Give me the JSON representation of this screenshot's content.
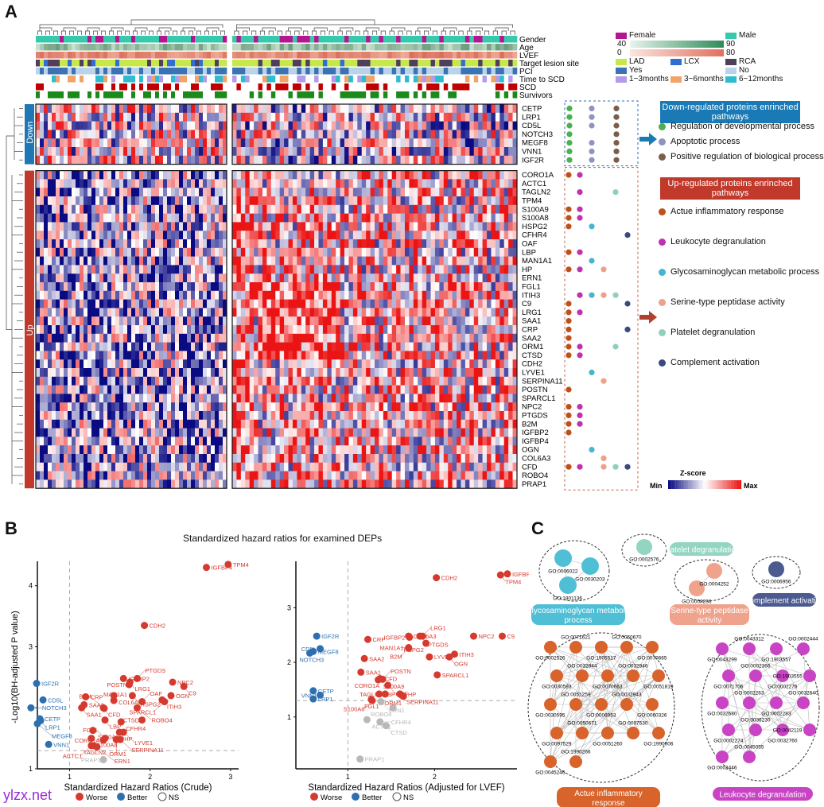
{
  "panelA": {
    "letter": "A",
    "annotation_rows": [
      "Gender",
      "Age",
      "LVEF",
      "Target lesion site",
      "PCI",
      "Time to SCD",
      "SCD",
      "Survivors"
    ],
    "legend": {
      "gender": [
        {
          "label": "Female",
          "color": "#b5168f"
        },
        {
          "label": "Male",
          "color": "#37c9ad"
        }
      ],
      "age": {
        "min": "40",
        "max": "90",
        "from": "#e8f4ee",
        "to": "#2e8b57"
      },
      "lvef": {
        "min": "0",
        "max": "80",
        "from": "#fbe6df",
        "to": "#e0705c"
      },
      "lesion": [
        {
          "label": "LAD",
          "color": "#c6e84a"
        },
        {
          "label": "LCX",
          "color": "#2f6fd1"
        },
        {
          "label": "RCA",
          "color": "#4f3f5b"
        }
      ],
      "pci": [
        {
          "label": "Yes",
          "color": "#3a72b4"
        },
        {
          "label": "No",
          "color": "#b9d3ea"
        }
      ],
      "time": [
        {
          "label": "1~3months",
          "color": "#b49be8"
        },
        {
          "label": "3~6months",
          "color": "#f1a46a"
        },
        {
          "label": "6~12months",
          "color": "#2ebdd0"
        }
      ]
    },
    "groups": {
      "down": "Down",
      "up": "Up",
      "down_color": "#1f78b4",
      "up_color": "#c0392b"
    },
    "down_genes": [
      "CETP",
      "LRP1",
      "CD5L",
      "NOTCH3",
      "MEGF8",
      "VNN1",
      "IGF2R"
    ],
    "up_genes": [
      "CORO1A",
      "ACTC1",
      "TAGLN2",
      "TPM4",
      "S100A9",
      "S100A8",
      "HSPG2",
      "CFHR4",
      "OAF",
      "LBP",
      "MAN1A1",
      "HP",
      "ERN1",
      "FGL1",
      "ITIH3",
      "C9",
      "LRG1",
      "SAA1",
      "CRP",
      "SAA2",
      "ORM1",
      "CTSD",
      "CDH2",
      "LYVE1",
      "SERPINA11",
      "POSTN",
      "SPARCL1",
      "NPC2",
      "PTGDS",
      "B2M",
      "IGFBP2",
      "IGFBP4",
      "OGN",
      "COL6A3",
      "CFD",
      "ROBO4",
      "PRAP1"
    ],
    "down_pathways": {
      "title": "Down-regulated proteins enrinched pathways",
      "color": "#1a7ab5",
      "items": [
        {
          "label": "Regulation of developmental process",
          "color": "#4caf50"
        },
        {
          "label": "Apoptotic process",
          "color": "#8f93c2"
        },
        {
          "label": "Positive regulation of biological process",
          "color": "#7b5e4a"
        }
      ],
      "membership": {
        "CETP": [
          0,
          1,
          2
        ],
        "LRP1": [
          0,
          1,
          2
        ],
        "CD5L": [
          0,
          1,
          2
        ],
        "NOTCH3": [
          0,
          2
        ],
        "MEGF8": [
          0,
          1,
          2
        ],
        "VNN1": [
          0,
          1,
          2
        ],
        "IGF2R": [
          0,
          1,
          2
        ]
      }
    },
    "up_pathways": {
      "title": "Up-regulated proteins enrinched pathways",
      "color": "#c0392b",
      "items": [
        {
          "label": "Actue inflammatory response",
          "color": "#c0501a"
        },
        {
          "label": "Leukocyte degranulation",
          "color": "#c030b0"
        },
        {
          "label": "Glycosaminoglycan metabolic process",
          "color": "#45b5d0"
        },
        {
          "label": "Serine-type peptidase activity",
          "color": "#eea08a"
        },
        {
          "label": "Platelet degranulation",
          "color": "#8fd0bb"
        },
        {
          "label": "Complement activation",
          "color": "#3a4a80"
        }
      ],
      "membership": {
        "CORO1A": [
          0,
          1
        ],
        "TAGLN2": [
          1,
          4
        ],
        "S100A9": [
          0,
          1
        ],
        "S100A8": [
          0,
          1
        ],
        "HSPG2": [
          0,
          2
        ],
        "CFHR4": [
          5
        ],
        "LBP": [
          0,
          1
        ],
        "MAN1A1": [
          2
        ],
        "HP": [
          0,
          1,
          3
        ],
        "ITIH3": [
          1,
          2,
          3,
          4
        ],
        "C9": [
          0,
          5
        ],
        "LRG1": [
          0,
          1
        ],
        "SAA1": [
          0
        ],
        "CRP": [
          0,
          5
        ],
        "SAA2": [
          0
        ],
        "ORM1": [
          0,
          1,
          4
        ],
        "CTSD": [
          0,
          1
        ],
        "LYVE1": [
          2
        ],
        "SERPINA11": [
          3
        ],
        "POSTN": [
          0
        ],
        "NPC2": [
          0,
          1
        ],
        "PTGDS": [
          0,
          1
        ],
        "B2M": [
          0,
          1
        ],
        "IGFBP2": [
          0
        ],
        "OGN": [
          2
        ],
        "COL6A3": [
          3
        ],
        "CFD": [
          0,
          1,
          3,
          4,
          5
        ]
      }
    },
    "zscore": {
      "title": "Z-score",
      "min": "Min",
      "max": "Max"
    }
  },
  "panelB": {
    "letter": "B",
    "title": "Standardized hazard ratios for examined DEPs",
    "ylabel": "-Log10(BH-adjusted P value)",
    "legend": [
      {
        "label": "Worse",
        "color": "#d63a2f"
      },
      {
        "label": "Better",
        "color": "#2e6fb0"
      },
      {
        "label": "NS",
        "color": "#ffffff"
      }
    ]
  },
  "chart_data": [
    {
      "type": "scatter",
      "title": "Standardized hazard ratios for examined DEPs",
      "xlabel": "Standardized Hazard Ratios (Crude)",
      "ylabel": "-Log10(BH-adjusted P value)",
      "xlim": [
        0.6,
        3.1
      ],
      "ylim": [
        1,
        4.4
      ],
      "xticks": [
        1,
        2,
        3
      ],
      "yticks": [
        1,
        2,
        3,
        4
      ],
      "vline": 1,
      "hline": 1.3,
      "points": [
        {
          "g": "TPM4",
          "x": 2.97,
          "y": 4.35,
          "c": "worse"
        },
        {
          "g": "IGFBP4",
          "x": 2.7,
          "y": 4.3,
          "c": "worse"
        },
        {
          "g": "CDH2",
          "x": 1.93,
          "y": 3.35,
          "c": "worse"
        },
        {
          "g": "IGFBP2",
          "x": 1.67,
          "y": 2.48,
          "c": "worse"
        },
        {
          "g": "PTGDS",
          "x": 1.84,
          "y": 2.48,
          "c": "worse"
        },
        {
          "g": "LRG1",
          "x": 1.75,
          "y": 2.42,
          "c": "worse"
        },
        {
          "g": "POSTN",
          "x": 1.74,
          "y": 2.38,
          "c": "worse"
        },
        {
          "g": "NPC2",
          "x": 2.28,
          "y": 2.42,
          "c": "worse"
        },
        {
          "g": "C9",
          "x": 2.42,
          "y": 2.35,
          "c": "worse"
        },
        {
          "g": "OGN",
          "x": 2.26,
          "y": 2.2,
          "c": "worse"
        },
        {
          "g": "ITIH3",
          "x": 2.15,
          "y": 2.13,
          "c": "worse"
        },
        {
          "g": "SPARCL1",
          "x": 2.18,
          "y": 2.1,
          "c": "worse"
        },
        {
          "g": "COL6A3",
          "x": 1.55,
          "y": 2.2,
          "c": "worse"
        },
        {
          "g": "HSPG2",
          "x": 1.78,
          "y": 2.2,
          "c": "worse"
        },
        {
          "g": "CRP",
          "x": 1.2,
          "y": 2.18,
          "c": "worse"
        },
        {
          "g": "MAN1A1",
          "x": 1.55,
          "y": 2.12,
          "c": "worse"
        },
        {
          "g": "OAF",
          "x": 1.9,
          "y": 2.1,
          "c": "worse"
        },
        {
          "g": "SAA2",
          "x": 1.18,
          "y": 2.05,
          "c": "worse"
        },
        {
          "g": "CFD",
          "x": 1.42,
          "y": 2.0,
          "c": "worse"
        },
        {
          "g": "B2M",
          "x": 1.43,
          "y": 1.99,
          "c": "worse"
        },
        {
          "g": "ROBO4",
          "x": 1.84,
          "y": 2.0,
          "c": "worse"
        },
        {
          "g": "SAA1",
          "x": 1.15,
          "y": 2.0,
          "c": "worse"
        },
        {
          "g": "LBP",
          "x": 1.44,
          "y": 1.8,
          "c": "worse"
        },
        {
          "g": "CFHR4",
          "x": 1.64,
          "y": 1.77,
          "c": "worse"
        },
        {
          "g": "CTSD",
          "x": 1.9,
          "y": 1.8,
          "c": "worse"
        },
        {
          "g": "S100A9",
          "x": 1.29,
          "y": 1.63,
          "c": "worse"
        },
        {
          "g": "HP",
          "x": 1.62,
          "y": 1.6,
          "c": "worse"
        },
        {
          "g": "LYVE1",
          "x": 1.67,
          "y": 1.6,
          "c": "worse"
        },
        {
          "g": "S100A8",
          "x": 1.27,
          "y": 1.5,
          "c": "worse"
        },
        {
          "g": "FGL1",
          "x": 1.44,
          "y": 1.5,
          "c": "worse"
        },
        {
          "g": "SERPINA11",
          "x": 1.63,
          "y": 1.48,
          "c": "worse"
        },
        {
          "g": "TAGLN2",
          "x": 1.3,
          "y": 1.38,
          "c": "worse"
        },
        {
          "g": "CORO1A",
          "x": 1.42,
          "y": 1.47,
          "c": "worse"
        },
        {
          "g": "ORM1",
          "x": 1.58,
          "y": 1.48,
          "c": "worse"
        },
        {
          "g": "ACTC1",
          "x": 1.27,
          "y": 1.38,
          "c": "worse"
        },
        {
          "g": "ERN1",
          "x": 1.34,
          "y": 1.36,
          "c": "worse"
        },
        {
          "g": "PRAP1",
          "x": 1.42,
          "y": 1.15,
          "c": "ns"
        },
        {
          "g": "IGF2R",
          "x": 0.59,
          "y": 2.4,
          "c": "better"
        },
        {
          "g": "CD5L",
          "x": 0.67,
          "y": 2.13,
          "c": "better"
        },
        {
          "g": "NOTCH3",
          "x": 0.52,
          "y": 2.0,
          "c": "better"
        },
        {
          "g": "CETP",
          "x": 0.63,
          "y": 1.82,
          "c": "better"
        },
        {
          "g": "LRP1",
          "x": 0.64,
          "y": 1.79,
          "c": "better"
        },
        {
          "g": "MEGF8",
          "x": 0.6,
          "y": 1.74,
          "c": "better"
        },
        {
          "g": "VNN1",
          "x": 0.74,
          "y": 1.4,
          "c": "better"
        }
      ]
    },
    {
      "type": "scatter",
      "xlabel": "Standardized Hazard Ratios (Adjusted for LVEF)",
      "ylabel": "-Log10(BH-adjusted P value)",
      "xlim": [
        0.4,
        2.95
      ],
      "ylim": [
        0.05,
        3.85
      ],
      "xticks": [
        1,
        2
      ],
      "yticks": [
        1,
        2,
        3
      ],
      "vline": 1,
      "hline": 1.3,
      "points": [
        {
          "g": "IGFBP4",
          "x": 2.84,
          "y": 3.62,
          "c": "worse"
        },
        {
          "g": "TPM4",
          "x": 2.76,
          "y": 3.6,
          "c": "worse"
        },
        {
          "g": "CDH2",
          "x": 2.02,
          "y": 3.55,
          "c": "worse"
        },
        {
          "g": "COL6A3",
          "x": 1.7,
          "y": 2.48,
          "c": "worse"
        },
        {
          "g": "LRG1",
          "x": 1.86,
          "y": 2.48,
          "c": "worse"
        },
        {
          "g": "PTGDS",
          "x": 1.83,
          "y": 2.48,
          "c": "worse"
        },
        {
          "g": "HSPG2",
          "x": 1.9,
          "y": 2.35,
          "c": "worse"
        },
        {
          "g": "NPC2",
          "x": 2.45,
          "y": 2.48,
          "c": "worse"
        },
        {
          "g": "C9",
          "x": 2.78,
          "y": 2.48,
          "c": "worse"
        },
        {
          "g": "IGFBP2",
          "x": 1.71,
          "y": 2.46,
          "c": "worse"
        },
        {
          "g": "CRP",
          "x": 1.23,
          "y": 2.42,
          "c": "worse"
        },
        {
          "g": "MAN1A1",
          "x": 1.7,
          "y": 2.27,
          "c": "worse"
        },
        {
          "g": "B2M",
          "x": 1.7,
          "y": 2.26,
          "c": "worse"
        },
        {
          "g": "ITIH3",
          "x": 2.23,
          "y": 2.15,
          "c": "worse"
        },
        {
          "g": "OGN",
          "x": 2.17,
          "y": 2.1,
          "c": "worse"
        },
        {
          "g": "LYVE1",
          "x": 1.94,
          "y": 2.1,
          "c": "worse"
        },
        {
          "g": "SAA2",
          "x": 1.19,
          "y": 2.07,
          "c": "worse"
        },
        {
          "g": "SAA1",
          "x": 1.15,
          "y": 1.82,
          "c": "worse"
        },
        {
          "g": "SPARCL1",
          "x": 2.03,
          "y": 1.77,
          "c": "worse"
        },
        {
          "g": "CFD",
          "x": 1.37,
          "y": 1.7,
          "c": "worse"
        },
        {
          "g": "POSTN",
          "x": 1.4,
          "y": 1.69,
          "c": "worse"
        },
        {
          "g": "S100A9",
          "x": 1.35,
          "y": 1.68,
          "c": "worse"
        },
        {
          "g": "CORO1A",
          "x": 1.37,
          "y": 1.7,
          "c": "worse"
        },
        {
          "g": "OAF",
          "x": 1.46,
          "y": 1.58,
          "c": "worse"
        },
        {
          "g": "LBP",
          "x": 1.36,
          "y": 1.42,
          "c": "worse"
        },
        {
          "g": "TAGLN2",
          "x": 1.43,
          "y": 1.42,
          "c": "worse"
        },
        {
          "g": "HP",
          "x": 1.6,
          "y": 1.42,
          "c": "worse"
        },
        {
          "g": "ORM1",
          "x": 1.64,
          "y": 1.38,
          "c": "worse"
        },
        {
          "g": "SERPINA11",
          "x": 1.62,
          "y": 1.4,
          "c": "worse"
        },
        {
          "g": "FGL1",
          "x": 1.27,
          "y": 1.32,
          "c": "worse"
        },
        {
          "g": "S100A8",
          "x": 1.28,
          "y": 1.3,
          "c": "worse"
        },
        {
          "g": "ERN1",
          "x": 1.38,
          "y": 1.28,
          "c": "ns"
        },
        {
          "g": "ROBO4",
          "x": 1.52,
          "y": 1.17,
          "c": "ns"
        },
        {
          "g": "ACTC1",
          "x": 1.22,
          "y": 0.95,
          "c": "ns"
        },
        {
          "g": "CFHR4",
          "x": 1.37,
          "y": 0.91,
          "c": "ns"
        },
        {
          "g": "CTSD",
          "x": 1.44,
          "y": 0.84,
          "c": "ns"
        },
        {
          "g": "PRAP1",
          "x": 1.14,
          "y": 0.23,
          "c": "ns"
        },
        {
          "g": "IGF2R",
          "x": 0.64,
          "y": 2.48,
          "c": "better"
        },
        {
          "g": "MEGF8",
          "x": 0.6,
          "y": 2.2,
          "c": "better"
        },
        {
          "g": "CD5L",
          "x": 0.68,
          "y": 2.25,
          "c": "better"
        },
        {
          "g": "NOTCH3",
          "x": 0.56,
          "y": 2.17,
          "c": "better"
        },
        {
          "g": "CETP",
          "x": 0.6,
          "y": 1.48,
          "c": "better"
        },
        {
          "g": "VNN1",
          "x": 0.68,
          "y": 1.4,
          "c": "better"
        },
        {
          "g": "LRP1",
          "x": 0.6,
          "y": 1.33,
          "c": "better"
        }
      ]
    }
  ],
  "panelC": {
    "letter": "C",
    "clusters": [
      {
        "label": "Glycosaminoglycan metabolic process",
        "color": "#4fbfd6",
        "nodes": [
          "GO:0006022",
          "GO:0030203",
          "GO:1901136"
        ]
      },
      {
        "label": "Platelet degranulation",
        "color": "#93d5c1",
        "nodes": [
          "GO:0002576"
        ]
      },
      {
        "label": "Serine-type peptidase activity",
        "color": "#f0a38c",
        "nodes": [
          "GO:0004252",
          "GO:0008236"
        ]
      },
      {
        "label": "Complement activation",
        "color": "#4b5a8f",
        "nodes": [
          "GO:0006956"
        ]
      },
      {
        "label": "Actue inflammatory response",
        "color": "#d8632b",
        "nodes": [
          "GO:0002526",
          "GO:0071621",
          "GO:1905517",
          "GO:0050670",
          "GO:0070665",
          "GO:0030593",
          "GO:0032944",
          "GO:0070663",
          "GO:0032946",
          "GO:0051819",
          "GO:0030595",
          "GO:0051259",
          "GO:0006953",
          "GO:0032943",
          "GO:0060326",
          "GO:0097529",
          "GO:0050671",
          "GO:0051260",
          "GO:0097530",
          "GO:1990006",
          "GO:0045246",
          "GO:1990266"
        ]
      },
      {
        "label": "Leukocyte degranulation",
        "color": "#c944c4",
        "nodes": [
          "GO:0043299",
          "GO:0043312",
          "GO:1903557",
          "GO:0002444",
          "GO:0071706",
          "GO:0002366",
          "GO:0002276",
          "GO:1903555",
          "GO:0032680",
          "GO:0002263",
          "GO:0002283",
          "GO:0032640",
          "GO:0002274",
          "GO:0036230",
          "GO:0032760",
          "GO:0042119",
          "GO:0002446",
          "GO:0045055"
        ]
      }
    ]
  },
  "watermark": "ylzx.net"
}
